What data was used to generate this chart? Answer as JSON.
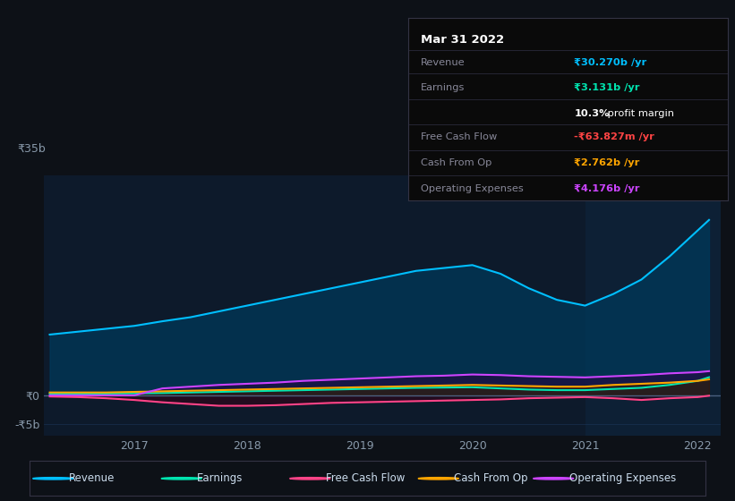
{
  "bg_color": "#0d1117",
  "chart_bg": "#0d1a2b",
  "highlight_bg": "#0d2035",
  "grid_color": "#1e3a5f",
  "zero_line_color": "#4a6080",
  "title": "Mar 31 2022",
  "tooltip": {
    "Revenue": {
      "value": "₹30.270b /yr",
      "color": "#00bfff"
    },
    "Earnings": {
      "value": "₹3.131b /yr",
      "color": "#00e5b0"
    },
    "profit_margin_pct": "10.3%",
    "profit_margin_text": " profit margin",
    "Free Cash Flow": {
      "value": "-₹63.827m /yr",
      "color": "#ff4444"
    },
    "Cash From Op": {
      "value": "₹2.762b /yr",
      "color": "#ffa500"
    },
    "Operating Expenses": {
      "value": "₹4.176b /yr",
      "color": "#cc44ff"
    }
  },
  "ylim": [
    -7,
    38
  ],
  "ytick_labels": [
    "-₹5b",
    "₹0",
    "₹35b"
  ],
  "ytick_vals": [
    -5,
    0,
    35
  ],
  "xticks": [
    2017,
    2018,
    2019,
    2020,
    2021,
    2022
  ],
  "legend_items": [
    {
      "label": "Revenue",
      "color": "#00bfff"
    },
    {
      "label": "Earnings",
      "color": "#00e5b0"
    },
    {
      "label": "Free Cash Flow",
      "color": "#ff4488"
    },
    {
      "label": "Cash From Op",
      "color": "#ffa500"
    },
    {
      "label": "Operating Expenses",
      "color": "#cc44ff"
    }
  ],
  "series": {
    "x": [
      2016.25,
      2016.5,
      2016.75,
      2017.0,
      2017.25,
      2017.5,
      2017.75,
      2018.0,
      2018.25,
      2018.5,
      2018.75,
      2019.0,
      2019.25,
      2019.5,
      2019.75,
      2020.0,
      2020.25,
      2020.5,
      2020.75,
      2021.0,
      2021.25,
      2021.5,
      2021.75,
      2022.0,
      2022.1
    ],
    "Revenue": [
      10.5,
      11.0,
      11.5,
      12.0,
      12.8,
      13.5,
      14.5,
      15.5,
      16.5,
      17.5,
      18.5,
      19.5,
      20.5,
      21.5,
      22.0,
      22.5,
      21.0,
      18.5,
      16.5,
      15.5,
      17.5,
      20.0,
      24.0,
      28.5,
      30.3
    ],
    "Earnings": [
      0.3,
      0.3,
      0.3,
      0.35,
      0.4,
      0.5,
      0.6,
      0.7,
      0.8,
      0.9,
      1.0,
      1.1,
      1.2,
      1.3,
      1.35,
      1.4,
      1.2,
      1.0,
      0.9,
      0.9,
      1.1,
      1.3,
      1.8,
      2.5,
      3.13
    ],
    "Free Cash Flow": [
      -0.2,
      -0.3,
      -0.5,
      -0.8,
      -1.2,
      -1.5,
      -1.8,
      -1.8,
      -1.7,
      -1.5,
      -1.3,
      -1.2,
      -1.1,
      -1.0,
      -0.9,
      -0.8,
      -0.7,
      -0.5,
      -0.4,
      -0.3,
      -0.5,
      -0.8,
      -0.5,
      -0.3,
      -0.064
    ],
    "Cash From Op": [
      0.5,
      0.5,
      0.5,
      0.6,
      0.7,
      0.8,
      0.9,
      1.0,
      1.1,
      1.2,
      1.3,
      1.4,
      1.5,
      1.6,
      1.7,
      1.8,
      1.7,
      1.6,
      1.5,
      1.5,
      1.8,
      2.0,
      2.2,
      2.5,
      2.76
    ],
    "Operating Expenses": [
      0.0,
      0.0,
      0.0,
      0.0,
      1.2,
      1.5,
      1.8,
      2.0,
      2.2,
      2.5,
      2.7,
      2.9,
      3.1,
      3.3,
      3.4,
      3.6,
      3.5,
      3.3,
      3.2,
      3.1,
      3.3,
      3.5,
      3.8,
      4.0,
      4.18
    ]
  },
  "series_colors": {
    "Revenue": "#00bfff",
    "Earnings": "#00e5b0",
    "Free Cash Flow": "#ff4488",
    "Cash From Op": "#ffa500",
    "Operating Expenses": "#cc44ff"
  },
  "fill_colors": {
    "Revenue": "#003a5c",
    "Earnings": "#003a30",
    "Free Cash Flow": "#3a0015",
    "Cash From Op": "#3a2000",
    "Operating Expenses": "#2a0040"
  },
  "highlight_x_start": 2021.0,
  "highlight_x_end": 2022.2,
  "xmin": 2016.2,
  "xmax": 2022.2
}
